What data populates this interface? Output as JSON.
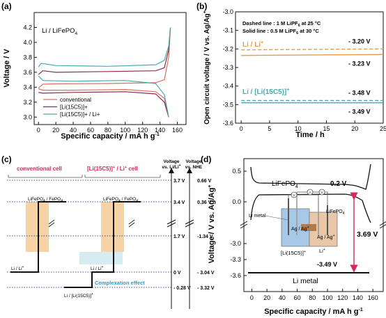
{
  "panels": {
    "a": {
      "label": "(a)"
    },
    "b": {
      "label": "(b)"
    },
    "c": {
      "label": "(c)"
    },
    "d": {
      "label": "(d)"
    }
  },
  "chart_data": [
    {
      "id": "a",
      "type": "line",
      "title": "Li / LiFePO4",
      "title_main": "Li / LiFePO",
      "title_sub": "4",
      "xlabel": "Specific capacity / mA h g-1",
      "ylabel": "Voltage / V",
      "xlim": [
        -5,
        170
      ],
      "ylim": [
        2.9,
        4.4
      ],
      "xticks": [
        0,
        20,
        40,
        60,
        80,
        100,
        120,
        140,
        160
      ],
      "yticks": [
        3.0,
        3.2,
        3.4,
        3.6,
        3.8,
        4.0,
        4.2
      ],
      "legend": [
        "conventional",
        "[Li(15C5)]+",
        "[Li(15C5)]+ / Li+"
      ],
      "series": [
        {
          "name": "conventional",
          "color": "#d9705a",
          "charge": [
            [
              0,
              3.39
            ],
            [
              5,
              3.44
            ],
            [
              20,
              3.445
            ],
            [
              80,
              3.45
            ],
            [
              135,
              3.46
            ],
            [
              145,
              3.5
            ],
            [
              150,
              3.8
            ],
            [
              152,
              4.2
            ]
          ],
          "discharge": [
            [
              0,
              3.38
            ],
            [
              5,
              3.36
            ],
            [
              40,
              3.36
            ],
            [
              100,
              3.37
            ],
            [
              135,
              3.34
            ],
            [
              145,
              3.25
            ],
            [
              150,
              3.0
            ]
          ]
        },
        {
          "name": "[Li(15C5)]+",
          "color": "#8a2a5a",
          "charge": [
            [
              0,
              3.57
            ],
            [
              5,
              3.62
            ],
            [
              20,
              3.6
            ],
            [
              80,
              3.61
            ],
            [
              135,
              3.62
            ],
            [
              145,
              3.66
            ],
            [
              150,
              3.9
            ],
            [
              152,
              4.2
            ]
          ],
          "discharge": [
            [
              0,
              3.33
            ],
            [
              5,
              3.32
            ],
            [
              40,
              3.33
            ],
            [
              100,
              3.34
            ],
            [
              135,
              3.31
            ],
            [
              145,
              3.2
            ],
            [
              150,
              3.0
            ]
          ]
        },
        {
          "name": "[Li(15C5)]+ / Li+",
          "color": "#4aaab0",
          "charge": [
            [
              0,
              3.67
            ],
            [
              3,
              3.72
            ],
            [
              20,
              3.69
            ],
            [
              80,
              3.68
            ],
            [
              135,
              3.7
            ],
            [
              145,
              3.76
            ],
            [
              150,
              3.95
            ],
            [
              152,
              4.2
            ]
          ],
          "discharge": [
            [
              0,
              3.55
            ],
            [
              5,
              3.49
            ],
            [
              40,
              3.48
            ],
            [
              100,
              3.49
            ],
            [
              135,
              3.45
            ],
            [
              145,
              3.3
            ],
            [
              150,
              3.0
            ]
          ]
        }
      ]
    },
    {
      "id": "b",
      "type": "line",
      "xlabel": "Time / h",
      "ylabel": "Open circuit voltage / V vs. Ag/Ag+",
      "xlim": [
        -1,
        25
      ],
      "ylim": [
        -3.6,
        -3.0
      ],
      "xticks": [
        0,
        5,
        10,
        15,
        20,
        25
      ],
      "yticks": [
        -3.0,
        -3.1,
        -3.2,
        -3.3,
        -3.4,
        -3.5,
        -3.6
      ],
      "note1": "Dashed line : 1 M LiPF6 at 25 °C",
      "note2": "Solid line : 0.5 M LiPF6 at 30 °C",
      "series": [
        {
          "name": "Li / Li+",
          "color": "#e69a4c",
          "style": "dashed",
          "values": [
            [
              0,
              -3.205
            ],
            [
              25,
              -3.2
            ]
          ],
          "label": "- 3.20 V"
        },
        {
          "name": "Li / Li+",
          "color": "#e69a4c",
          "style": "solid",
          "values": [
            [
              0,
              -3.235
            ],
            [
              25,
              -3.23
            ]
          ],
          "label": "- 3.23 V"
        },
        {
          "name": "Li / [Li(15C5)]+",
          "color": "#4aaab0",
          "style": "dashed",
          "values": [
            [
              0,
              -3.478
            ],
            [
              25,
              -3.478
            ]
          ],
          "label": "- 3.48 V"
        },
        {
          "name": "Li / [Li(15C5)]+",
          "color": "#4aaab0",
          "style": "solid",
          "values": [
            [
              0,
              -3.49
            ],
            [
              25,
              -3.49
            ]
          ],
          "label": "- 3.49 V"
        }
      ],
      "series_labels": {
        "li": "Li / Li+",
        "crown": "Li / [Li(15C5)]+"
      }
    },
    {
      "id": "d",
      "type": "line",
      "xlabel": "Specific capacity / mA h g-1",
      "ylabel": "Voltage / V vs. Ag/Ag+",
      "xlim": [
        -5,
        170
      ],
      "xticks": [
        0,
        20,
        40,
        60,
        80,
        100,
        120,
        140,
        160
      ],
      "yticks_upper": [
        0.0,
        0.5
      ],
      "yticks_lower": [
        -3.0,
        -3.3,
        -3.6
      ],
      "annotations": {
        "lfp": "LiFePO4",
        "lfp_v": "0.2 V",
        "li": "Li metal",
        "li_v": "-3.49 V",
        "gap": "3.69 V",
        "li_metal": "Li metal",
        "ag": "Ag / Ag+",
        "crown": "[Li(15C5)]+",
        "li_ion": "Li+",
        "lfp2": "LiFePO4",
        "v_meter": "V",
        "a_meter": "A"
      }
    }
  ],
  "diagram_c": {
    "legend_left": "conventional cell",
    "legend_right": "[Li(15C5)]+ / Li+ cell",
    "axis1_title1": "Voltage",
    "axis1_title2": "vs. Li/Li+",
    "axis2_title1": "Voltage",
    "axis2_title2": "vs. NHE",
    "levels": [
      {
        "v": "3.7 V",
        "nhe": "0.66 V"
      },
      {
        "v": "3.4 V",
        "nhe": "0.36 V"
      },
      {
        "v": "1.7 V",
        "nhe": "-1.34 V"
      },
      {
        "v": "0 V",
        "nhe": "- 3.04 V"
      },
      {
        "v": "- 0.28 V",
        "nhe": "- 3.32 V"
      }
    ],
    "lfp_left": "LiFePO4 / FePO4",
    "lfp_right": "LiFePO4 / FePO4",
    "li_left": "Li / Li+",
    "li_right": "Li / Li+",
    "crown_couple": "Li / [Li(15C5)]+",
    "complexation": "Complexation effect"
  }
}
